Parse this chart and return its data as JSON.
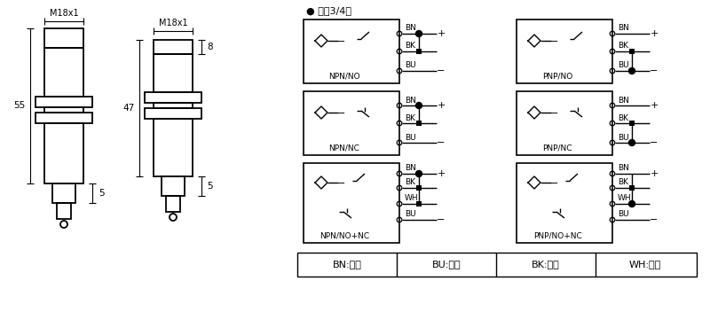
{
  "bg_color": "#ffffff",
  "line_color": "#000000",
  "title_text": "● 直涁3/4线",
  "legend_items": [
    "BN:棕色",
    "BU:兰色",
    "BK:黑色",
    "WH:白色"
  ],
  "npn_labels": [
    "NPN/NO",
    "NPN/NC",
    "NPN/NO+NC"
  ],
  "pnp_labels": [
    "PNP/NO",
    "PNP/NC",
    "PNP/NO+NC"
  ],
  "dim_m18": "M18x1",
  "dim_55": "55",
  "dim_47": "47",
  "dim_5": "5",
  "dim_8": "8"
}
